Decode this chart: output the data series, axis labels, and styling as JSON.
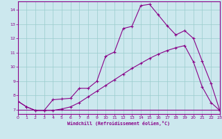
{
  "xlabel": "Windchill (Refroidissement éolien,°C)",
  "bg_color": "#cce8ee",
  "line_color": "#880088",
  "grid_color": "#99cccc",
  "xlim": [
    0,
    23
  ],
  "ylim": [
    6.7,
    14.6
  ],
  "xticks": [
    0,
    1,
    2,
    3,
    4,
    5,
    6,
    7,
    8,
    9,
    10,
    11,
    12,
    13,
    14,
    15,
    16,
    17,
    18,
    19,
    20,
    21,
    22,
    23
  ],
  "yticks": [
    7,
    8,
    9,
    10,
    11,
    12,
    13,
    14
  ],
  "line_jagged_x": [
    0,
    1,
    2,
    3,
    4,
    5,
    6,
    7,
    8,
    9,
    10,
    11,
    12,
    13,
    14,
    15,
    16,
    17,
    18,
    19,
    20,
    21,
    22,
    23
  ],
  "line_jagged_y": [
    7.6,
    7.2,
    6.95,
    6.95,
    7.7,
    7.75,
    7.8,
    8.5,
    8.5,
    9.0,
    10.75,
    11.05,
    12.7,
    12.85,
    14.3,
    14.4,
    13.65,
    12.9,
    12.25,
    12.55,
    12.0,
    10.4,
    8.85,
    6.95
  ],
  "line_smooth_x": [
    0,
    1,
    2,
    3,
    4,
    5,
    6,
    7,
    8,
    9,
    10,
    11,
    12,
    13,
    14,
    15,
    16,
    17,
    18,
    19,
    20,
    21,
    22,
    23
  ],
  "line_smooth_y": [
    7.6,
    7.2,
    6.95,
    6.95,
    6.95,
    7.05,
    7.2,
    7.5,
    7.9,
    8.3,
    8.7,
    9.1,
    9.5,
    9.9,
    10.25,
    10.6,
    10.9,
    11.15,
    11.35,
    11.5,
    10.35,
    8.6,
    7.5,
    6.95
  ],
  "line_flat_x": [
    0,
    1,
    2,
    3,
    4,
    5,
    6,
    7,
    8,
    9,
    10,
    11,
    12,
    13,
    14,
    15,
    16,
    17,
    18,
    19,
    20,
    21,
    22,
    23
  ],
  "line_flat_y": [
    7.0,
    7.0,
    7.0,
    7.0,
    7.0,
    7.0,
    7.0,
    7.0,
    7.0,
    7.0,
    7.0,
    7.0,
    7.0,
    7.0,
    7.0,
    7.0,
    7.0,
    7.0,
    7.0,
    7.0,
    7.0,
    7.0,
    7.0,
    7.0
  ]
}
